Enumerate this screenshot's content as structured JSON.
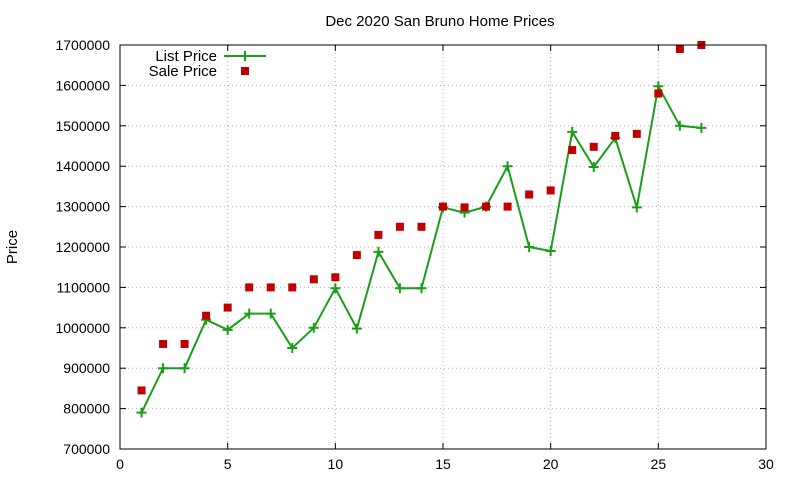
{
  "chart_data": {
    "type": "line",
    "title": "Dec 2020 San Bruno Home Prices",
    "xlabel": "",
    "ylabel": "Price",
    "xlim": [
      0,
      30
    ],
    "ylim": [
      700000,
      1700000
    ],
    "xticks": [
      0,
      5,
      10,
      15,
      20,
      25,
      30
    ],
    "yticks": [
      700000,
      800000,
      900000,
      1000000,
      1100000,
      1200000,
      1300000,
      1400000,
      1500000,
      1600000,
      1700000
    ],
    "grid": true,
    "legend_position": "top-left",
    "series": [
      {
        "name": "List Price",
        "style": "line-with-plus-markers",
        "color": "#1a9e1a",
        "x": [
          1,
          2,
          3,
          4,
          5,
          6,
          7,
          8,
          9,
          10,
          11,
          12,
          13,
          14,
          15,
          16,
          17,
          18,
          19,
          20,
          21,
          22,
          23,
          24,
          25,
          26,
          27
        ],
        "values": [
          790000,
          900000,
          900000,
          1020000,
          995000,
          1035000,
          1035000,
          950000,
          1000000,
          1098000,
          998000,
          1188000,
          1098000,
          1098000,
          1298000,
          1285000,
          1300000,
          1400000,
          1200000,
          1190000,
          1485000,
          1398000,
          1470000,
          1298000,
          1598000,
          1500000,
          1495000
        ]
      },
      {
        "name": "Sale Price",
        "style": "square-markers",
        "color": "#c00000",
        "x": [
          1,
          2,
          3,
          4,
          5,
          6,
          7,
          8,
          9,
          10,
          11,
          12,
          13,
          14,
          15,
          16,
          17,
          18,
          19,
          20,
          21,
          22,
          23,
          24,
          25,
          26,
          27
        ],
        "values": [
          845000,
          960000,
          960000,
          1030000,
          1050000,
          1100000,
          1100000,
          1100000,
          1120000,
          1125000,
          1180000,
          1230000,
          1250000,
          1250000,
          1300000,
          1298000,
          1300000,
          1300000,
          1330000,
          1340000,
          1440000,
          1448000,
          1475000,
          1480000,
          1580000,
          1690000,
          1700000
        ]
      }
    ]
  }
}
